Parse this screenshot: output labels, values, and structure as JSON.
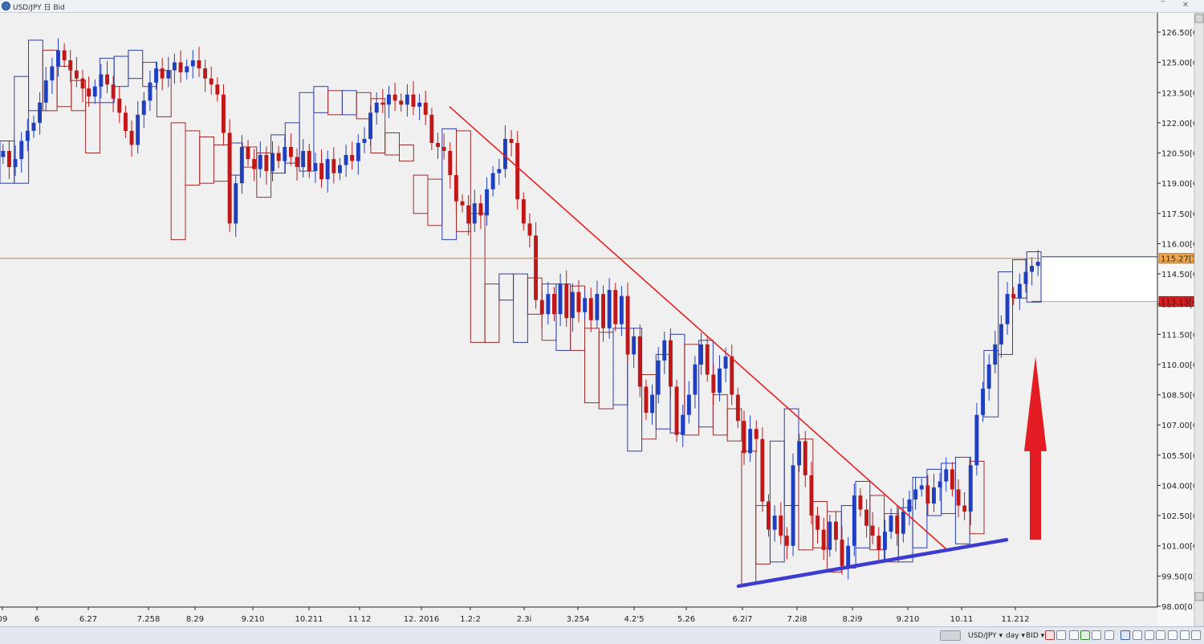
{
  "window": {
    "title": "USD/JPY 日 Bid",
    "min_label": "‾",
    "close_label": "✕"
  },
  "bottom_toolbar": {
    "symbol": "USD/JPY ▾",
    "period": "day ▾",
    "price": "BID ▾",
    "icons": [
      "marker-icon",
      "line-tool-icon",
      "cross-icon",
      "green-flag-icon",
      "crosshair-icon",
      "arrow-tool-icon",
      "calculator-icon",
      "table-icon",
      "window-icon",
      "window-icon",
      "window-icon",
      "window-icon",
      "window-icon"
    ]
  },
  "chart_data": {
    "type": "candlestick",
    "ylim": [
      98.0,
      127.0
    ],
    "grid": false,
    "y_ticks": [
      "126.50[0]",
      "125.00[0]",
      "123.50[0]",
      "122.00[0]",
      "120.50[0]",
      "119.00[0]",
      "117.50[0]",
      "116.00[0]",
      "114.50[0]",
      "113.00[0]",
      "111.50[0]",
      "110.00[0]",
      "108.50[0]",
      "107.00[0]",
      "105.50[0]",
      "104.00[0]",
      "102.50[0]",
      "101.00[0]",
      "99.50[0]",
      "98.00[0]"
    ],
    "x_ticks": [
      "09",
      "6",
      "6.27",
      "7.258",
      "8.29",
      "9.210",
      "10.211",
      "11 12",
      "12. 2016",
      "1.2:2",
      "2.3i",
      "3.254",
      "4.2'5",
      "5.26",
      "6.2i7",
      "7.2i8",
      "8.2i9",
      "9.210",
      "10.11",
      "11.212"
    ],
    "current_price": {
      "value": 115.27,
      "label": "115.27[7]"
    },
    "low_marker": {
      "value": 113.13,
      "label": "113.13[4]"
    },
    "color_up": "#1f3fbf",
    "color_down": "#c01818",
    "box_color_up": "#2c3fa8",
    "box_color_down": "#9c2b2b",
    "trendline_down": {
      "from": [
        "1.2:2 (early)",
        122.8
      ],
      "to": [
        "9.210 (late)",
        100.8
      ],
      "color": "#e52020"
    },
    "trendline_up": {
      "from": [
        "6.2i7",
        99.0
      ],
      "to": [
        "11.212",
        101.3
      ],
      "color": "#3c3cd0"
    },
    "arrow": {
      "direction": "up",
      "color": "#e31c24",
      "from": 101.3,
      "to": 110.4
    },
    "weekly_boxes": [
      [
        119.0,
        121.1
      ],
      [
        119.0,
        124.3
      ],
      [
        122.6,
        126.1
      ],
      [
        122.6,
        125.6
      ],
      [
        122.8,
        124.8
      ],
      [
        122.6,
        124.1
      ],
      [
        120.5,
        123.0
      ],
      [
        123.0,
        125.2
      ],
      [
        123.8,
        125.3
      ],
      [
        124.2,
        125.6
      ],
      [
        123.8,
        125.0
      ],
      [
        122.3,
        124.6
      ],
      [
        116.2,
        122.0
      ],
      [
        118.9,
        121.6
      ],
      [
        119.0,
        121.3
      ],
      [
        119.1,
        120.9
      ],
      [
        119.4,
        121.0
      ],
      [
        119.8,
        120.8
      ],
      [
        118.3,
        120.5
      ],
      [
        119.5,
        121.4
      ],
      [
        120.0,
        122.0
      ],
      [
        119.6,
        123.5
      ],
      [
        122.5,
        123.8
      ],
      [
        122.4,
        123.6
      ],
      [
        122.4,
        123.6
      ],
      [
        122.2,
        123.5
      ],
      [
        120.5,
        123.2
      ],
      [
        120.4,
        121.5
      ],
      [
        120.1,
        120.9
      ],
      [
        117.5,
        119.4
      ],
      [
        116.9,
        119.2
      ],
      [
        116.2,
        121.7
      ],
      [
        116.6,
        121.6
      ],
      [
        111.1,
        117.5
      ],
      [
        111.1,
        114.0
      ],
      [
        113.2,
        114.5
      ],
      [
        111.1,
        114.5
      ],
      [
        112.5,
        114.3
      ],
      [
        111.2,
        114.0
      ],
      [
        110.7,
        114.0
      ],
      [
        110.7,
        113.9
      ],
      [
        108.1,
        111.8
      ],
      [
        107.8,
        111.6
      ],
      [
        108.0,
        111.8
      ],
      [
        105.7,
        111.8
      ],
      [
        106.3,
        109.5
      ],
      [
        106.8,
        110.5
      ],
      [
        106.6,
        111.5
      ],
      [
        106.5,
        111.0
      ],
      [
        106.9,
        111.2
      ],
      [
        106.5,
        108.5
      ],
      [
        106.2,
        107.8
      ],
      [
        99.1,
        105.7
      ],
      [
        100.1,
        103.0
      ],
      [
        100.2,
        106.2
      ],
      [
        103.0,
        107.8
      ],
      [
        100.8,
        106.3
      ],
      [
        100.9,
        103.2
      ],
      [
        99.7,
        102.7
      ],
      [
        99.9,
        103.0
      ],
      [
        100.9,
        104.2
      ],
      [
        100.8,
        103.5
      ],
      [
        100.2,
        102.6
      ],
      [
        100.2,
        102.9
      ],
      [
        100.9,
        104.4
      ],
      [
        102.5,
        104.8
      ],
      [
        102.6,
        105.1
      ],
      [
        101.1,
        105.4
      ],
      [
        101.6,
        105.2
      ],
      [
        107.4,
        110.7
      ],
      [
        110.5,
        114.6
      ],
      [
        113.3,
        115.2
      ],
      [
        113.1,
        115.6
      ]
    ],
    "daily_closes": [
      120.6,
      119.8,
      120.2,
      121.1,
      121.6,
      122.0,
      123.0,
      124.1,
      124.8,
      125.6,
      125.1,
      124.6,
      124.2,
      123.7,
      123.3,
      123.8,
      124.4,
      123.9,
      123.2,
      122.5,
      121.6,
      120.9,
      122.4,
      123.1,
      124.0,
      124.7,
      124.2,
      124.6,
      125.0,
      124.5,
      124.8,
      125.1,
      124.7,
      124.2,
      123.9,
      123.4,
      121.5,
      117.0,
      119.0,
      120.8,
      120.2,
      119.7,
      120.4,
      119.6,
      120.5,
      120.1,
      120.8,
      120.3,
      119.8,
      120.6,
      119.6,
      120.0,
      119.2,
      120.2,
      119.5,
      119.9,
      120.4,
      120.1,
      121.0,
      121.2,
      122.5,
      123.0,
      122.9,
      123.4,
      123.1,
      122.9,
      123.4,
      122.8,
      123.0,
      122.4,
      121.0,
      120.8,
      120.6,
      119.4,
      118.1,
      117.9,
      117.0,
      118.0,
      117.4,
      118.7,
      119.5,
      119.7,
      121.2,
      121.0,
      118.2,
      117.0,
      116.4,
      113.2,
      112.5,
      113.5,
      112.5,
      114.0,
      112.3,
      113.6,
      112.6,
      113.3,
      112.2,
      113.5,
      111.8,
      113.7,
      112.0,
      113.4,
      110.5,
      111.4,
      108.9,
      107.6,
      108.5,
      110.2,
      111.2,
      108.9,
      106.5,
      107.5,
      108.5,
      110.0,
      111.0,
      109.5,
      108.6,
      109.8,
      110.4,
      108.5,
      107.2,
      105.6,
      106.8,
      106.3,
      103.2,
      101.8,
      102.5,
      101.5,
      101.0,
      105.0,
      106.2,
      104.5,
      102.5,
      101.8,
      100.8,
      102.2,
      101.3,
      100.0,
      101.0,
      103.5,
      102.8,
      102.0,
      101.5,
      100.8,
      101.7,
      102.5,
      101.6,
      102.7,
      103.3,
      103.8,
      104.0,
      103.1,
      103.9,
      104.2,
      104.8,
      103.8,
      103.0,
      102.7,
      105.0,
      107.5,
      108.8,
      110.0,
      111.0,
      112.0,
      113.5,
      113.3,
      114.0,
      114.6,
      114.9,
      115.1
    ]
  }
}
